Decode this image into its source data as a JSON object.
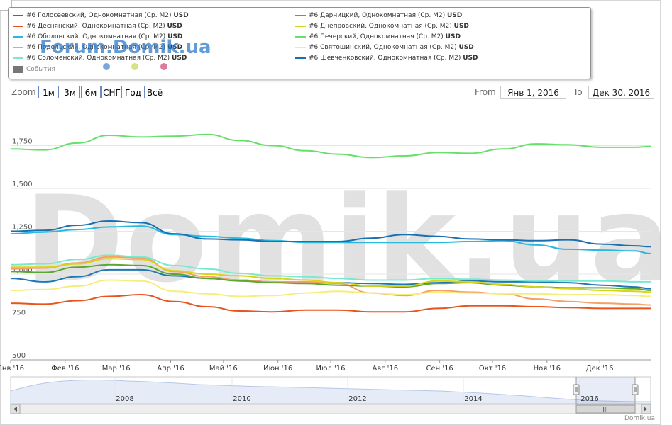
{
  "legend": {
    "series_labels": [
      {
        "name": "#6 Голосеевский, Однокомнатная (Ср. М2)",
        "unit": "USD",
        "color": "#1f77b4"
      },
      {
        "name": "#6 Деснянский, Однокомнатная (Ср. М2)",
        "unit": "USD",
        "color": "#e8541c"
      },
      {
        "name": "#6 Оболонский, Однокомнатная (Ср. М2)",
        "unit": "USD",
        "color": "#29b8e0"
      },
      {
        "name": "#6 Подольский, Однокомнатная (Ср. М2)",
        "unit": "USD",
        "color": "#f5a068"
      },
      {
        "name": "#6 Соломенский, Однокомнатная (Ср. М2)",
        "unit": "USD",
        "color": "#7ae8cf"
      },
      {
        "name": "#6 Дарницкий, Однокомнатная (Ср. М2)",
        "unit": "USD",
        "color": "#5aa832"
      },
      {
        "name": "#6 Днепровский, Однокомнатная (Ср. М2)",
        "unit": "USD",
        "color": "#d8d418"
      },
      {
        "name": "#6 Печерский, Однокомнатная (Ср. М2)",
        "unit": "USD",
        "color": "#66e06a"
      },
      {
        "name": "#6 Святошинский, Однокомнатная (Ср. М2)",
        "unit": "USD",
        "color": "#f5ee7a"
      },
      {
        "name": "#6 Шевченковский, Однокомнатная (Ср. М2)",
        "unit": "USD",
        "color": "#1a6fb0"
      }
    ],
    "events_label": "События",
    "event_dot_colors": [
      "#7aa8d8",
      "#d8e08a",
      "#e07a9a"
    ]
  },
  "brand": "Forum.Domik.ua",
  "watermark": "Domik.ua",
  "site_credit": "Domik.ua",
  "zoom": {
    "label": "Zoom",
    "buttons": [
      "1м",
      "3м",
      "6м",
      "СНГ",
      "Год",
      "Всё"
    ]
  },
  "range": {
    "from_label": "From",
    "from_value": "Янв 1, 2016",
    "to_label": "To",
    "to_value": "Дек 30, 2016"
  },
  "navigator": {
    "year_labels": [
      "2008",
      "2010",
      "2012",
      "2014",
      "2016"
    ],
    "scroll_thumb_label": "III"
  },
  "chart_data": {
    "type": "line",
    "x_tick_labels": [
      "Янв '16",
      "Фев '16",
      "Мар '16",
      "Апр '16",
      "Май '16",
      "Июн '16",
      "Июл '16",
      "Авг '16",
      "Сен '16",
      "Окт '16",
      "Ноя '16",
      "Дек '16"
    ],
    "y_tick_labels": [
      "500",
      "750",
      "1,000",
      "1,250",
      "1,500",
      "1,750"
    ],
    "ylim": [
      500,
      2000
    ],
    "grid": true,
    "legend_position": "top",
    "x_range": [
      "2016-01-01",
      "2016-12-30"
    ],
    "series": [
      {
        "name": "#6 Голосеевский, Однокомнатная (Ср. М2)",
        "color": "#1f77b4",
        "x": [
          "2016-01-01",
          "2016-01-20",
          "2016-02-08",
          "2016-02-26",
          "2016-03-15",
          "2016-04-03",
          "2016-04-22",
          "2016-05-10",
          "2016-05-29",
          "2016-06-17",
          "2016-07-05",
          "2016-07-24",
          "2016-08-12",
          "2016-08-31",
          "2016-09-18",
          "2016-10-07",
          "2016-10-26",
          "2016-11-13",
          "2016-12-02",
          "2016-12-21",
          "2016-12-30"
        ],
        "y": [
          975,
          955,
          985,
          1025,
          1025,
          990,
          975,
          965,
          955,
          950,
          950,
          945,
          940,
          950,
          960,
          955,
          955,
          950,
          935,
          925,
          915
        ]
      },
      {
        "name": "#6 Деснянский, Однокомнатная (Ср. М2)",
        "color": "#e8541c",
        "x": [
          "2016-01-01",
          "2016-01-20",
          "2016-02-08",
          "2016-02-26",
          "2016-03-15",
          "2016-04-03",
          "2016-04-22",
          "2016-05-10",
          "2016-05-29",
          "2016-06-17",
          "2016-07-05",
          "2016-07-24",
          "2016-08-12",
          "2016-08-31",
          "2016-09-18",
          "2016-10-07",
          "2016-10-26",
          "2016-11-13",
          "2016-12-02",
          "2016-12-21",
          "2016-12-30"
        ],
        "y": [
          830,
          825,
          845,
          870,
          880,
          840,
          810,
          785,
          780,
          790,
          790,
          780,
          780,
          800,
          815,
          815,
          810,
          805,
          800,
          800,
          800
        ]
      },
      {
        "name": "#6 Оболонский, Однокомнатная (Ср. М2)",
        "color": "#29b8e0",
        "x": [
          "2016-01-01",
          "2016-01-20",
          "2016-02-08",
          "2016-02-26",
          "2016-03-15",
          "2016-04-03",
          "2016-04-22",
          "2016-05-10",
          "2016-05-29",
          "2016-06-17",
          "2016-07-05",
          "2016-07-24",
          "2016-08-12",
          "2016-08-31",
          "2016-09-18",
          "2016-10-07",
          "2016-10-26",
          "2016-11-13",
          "2016-12-02",
          "2016-12-21",
          "2016-12-30"
        ],
        "y": [
          1235,
          1245,
          1260,
          1275,
          1280,
          1230,
          1220,
          1210,
          1195,
          1185,
          1185,
          1185,
          1185,
          1185,
          1190,
          1195,
          1170,
          1145,
          1140,
          1135,
          1120
        ]
      },
      {
        "name": "#6 Подольский, Однокомнатная (Ср. М2)",
        "color": "#f5a068",
        "x": [
          "2016-01-01",
          "2016-01-20",
          "2016-02-08",
          "2016-02-26",
          "2016-03-15",
          "2016-04-03",
          "2016-04-22",
          "2016-05-10",
          "2016-05-29",
          "2016-06-17",
          "2016-07-05",
          "2016-07-24",
          "2016-08-12",
          "2016-08-31",
          "2016-09-18",
          "2016-10-07",
          "2016-10-26",
          "2016-11-13",
          "2016-12-02",
          "2016-12-21",
          "2016-12-30"
        ],
        "y": [
          1030,
          1035,
          1065,
          1100,
          1095,
          1015,
          985,
          965,
          955,
          955,
          945,
          890,
          875,
          905,
          895,
          885,
          855,
          840,
          830,
          825,
          820
        ]
      },
      {
        "name": "#6 Соломенский, Однокомнатная (Ср. М2)",
        "color": "#7ae8cf",
        "x": [
          "2016-01-01",
          "2016-01-20",
          "2016-02-08",
          "2016-02-26",
          "2016-03-15",
          "2016-04-03",
          "2016-04-22",
          "2016-05-10",
          "2016-05-29",
          "2016-06-17",
          "2016-07-05",
          "2016-07-24",
          "2016-08-12",
          "2016-08-31",
          "2016-09-18",
          "2016-10-07",
          "2016-10-26",
          "2016-11-13",
          "2016-12-02",
          "2016-12-21",
          "2016-12-30"
        ],
        "y": [
          1055,
          1060,
          1085,
          1110,
          1100,
          1050,
          1030,
          1005,
          990,
          985,
          975,
          965,
          965,
          975,
          970,
          965,
          960,
          960,
          960,
          955,
          955
        ]
      },
      {
        "name": "#6 Дарницкий, Однокомнатная (Ср. М2)",
        "color": "#5aa832",
        "x": [
          "2016-01-01",
          "2016-01-20",
          "2016-02-08",
          "2016-02-26",
          "2016-03-15",
          "2016-04-03",
          "2016-04-22",
          "2016-05-10",
          "2016-05-29",
          "2016-06-17",
          "2016-07-05",
          "2016-07-24",
          "2016-08-12",
          "2016-08-31",
          "2016-09-18",
          "2016-10-07",
          "2016-10-26",
          "2016-11-13",
          "2016-12-02",
          "2016-12-21",
          "2016-12-30"
        ],
        "y": [
          1015,
          1010,
          1040,
          1055,
          1050,
          1000,
          975,
          960,
          950,
          945,
          935,
          930,
          925,
          945,
          950,
          935,
          925,
          920,
          920,
          915,
          905
        ]
      },
      {
        "name": "#6 Днепровский, Однокомнатная (Ср. М2)",
        "color": "#d8d418",
        "x": [
          "2016-01-01",
          "2016-01-20",
          "2016-02-08",
          "2016-02-26",
          "2016-03-15",
          "2016-04-03",
          "2016-04-22",
          "2016-05-10",
          "2016-05-29",
          "2016-06-17",
          "2016-07-05",
          "2016-07-24",
          "2016-08-12",
          "2016-08-31",
          "2016-09-18",
          "2016-10-07",
          "2016-10-26",
          "2016-11-13",
          "2016-12-02",
          "2016-12-21",
          "2016-12-30"
        ],
        "y": [
          1040,
          1040,
          1060,
          1090,
          1085,
          1020,
          1000,
          990,
          975,
          965,
          950,
          930,
          930,
          960,
          955,
          940,
          925,
          915,
          905,
          900,
          895
        ]
      },
      {
        "name": "#6 Печерский, Однокомнатная (Ср. М2)",
        "color": "#66e06a",
        "x": [
          "2016-01-01",
          "2016-01-20",
          "2016-02-08",
          "2016-02-26",
          "2016-03-15",
          "2016-04-03",
          "2016-04-22",
          "2016-05-10",
          "2016-05-29",
          "2016-06-17",
          "2016-07-05",
          "2016-07-24",
          "2016-08-12",
          "2016-08-31",
          "2016-09-18",
          "2016-10-07",
          "2016-10-26",
          "2016-11-13",
          "2016-12-02",
          "2016-12-21",
          "2016-12-30"
        ],
        "y": [
          1730,
          1725,
          1765,
          1810,
          1800,
          1805,
          1815,
          1780,
          1750,
          1720,
          1700,
          1680,
          1690,
          1710,
          1705,
          1730,
          1760,
          1755,
          1740,
          1740,
          1745
        ]
      },
      {
        "name": "#6 Святошинский, Однокомнатная (Ср. М2)",
        "color": "#f5ee7a",
        "x": [
          "2016-01-01",
          "2016-01-20",
          "2016-02-08",
          "2016-02-26",
          "2016-03-15",
          "2016-04-03",
          "2016-04-22",
          "2016-05-10",
          "2016-05-29",
          "2016-06-17",
          "2016-07-05",
          "2016-07-24",
          "2016-08-12",
          "2016-08-31",
          "2016-09-18",
          "2016-10-07",
          "2016-10-26",
          "2016-11-13",
          "2016-12-02",
          "2016-12-21",
          "2016-12-30"
        ],
        "y": [
          905,
          910,
          930,
          965,
          960,
          900,
          885,
          870,
          875,
          890,
          900,
          890,
          880,
          895,
          890,
          885,
          885,
          880,
          880,
          875,
          870
        ]
      },
      {
        "name": "#6 Шевченковский, Однокомнатная (Ср. М2)",
        "color": "#1a6fb0",
        "x": [
          "2016-01-01",
          "2016-01-20",
          "2016-02-08",
          "2016-02-26",
          "2016-03-15",
          "2016-04-03",
          "2016-04-22",
          "2016-05-10",
          "2016-05-29",
          "2016-06-17",
          "2016-07-05",
          "2016-07-24",
          "2016-08-12",
          "2016-08-31",
          "2016-09-18",
          "2016-10-07",
          "2016-10-26",
          "2016-11-13",
          "2016-12-02",
          "2016-12-21",
          "2016-12-30"
        ],
        "y": [
          1250,
          1255,
          1285,
          1310,
          1300,
          1235,
          1205,
          1200,
          1190,
          1190,
          1190,
          1210,
          1230,
          1220,
          1205,
          1200,
          1195,
          1200,
          1175,
          1165,
          1160
        ]
      }
    ]
  }
}
